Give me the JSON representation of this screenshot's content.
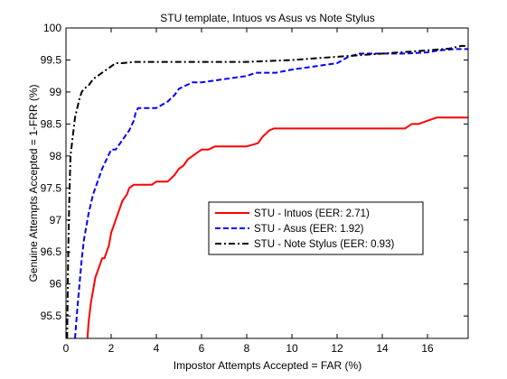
{
  "chart_data": {
    "type": "line",
    "title": "STU template, Intuos vs Asus vs Note Stylus",
    "xlabel": "Impostor Attempts Accepted = FAR (%)",
    "ylabel": "Genuine Attempts Accepted = 1-FRR (%)",
    "xlim": [
      0,
      17.8
    ],
    "ylim": [
      95.15,
      100
    ],
    "xticks": [
      0,
      2,
      4,
      6,
      8,
      10,
      12,
      14,
      16
    ],
    "yticks": [
      95.5,
      96,
      96.5,
      97,
      97.5,
      98,
      98.5,
      99,
      99.5,
      100
    ],
    "xtick_labels": [
      "0",
      "2",
      "4",
      "6",
      "8",
      "10",
      "12",
      "14",
      "16"
    ],
    "ytick_labels": [
      "95.5",
      "96",
      "96.5",
      "97",
      "97.5",
      "98",
      "98.5",
      "99",
      "99.5",
      "100"
    ],
    "grid": false,
    "legend_position": "center-right",
    "series": [
      {
        "name": "STU - Intuos (EER: 2.71)",
        "color": "#ff0000",
        "dash": "solid",
        "x": [
          0.95,
          1.0,
          1.1,
          1.2,
          1.3,
          1.4,
          1.5,
          1.6,
          1.7,
          1.8,
          1.9,
          2.0,
          2.1,
          2.3,
          2.5,
          2.7,
          2.8,
          3.0,
          3.2,
          3.4,
          3.6,
          3.8,
          4.0,
          4.2,
          4.5,
          4.8,
          5.0,
          5.2,
          5.4,
          5.6,
          5.8,
          6.0,
          6.3,
          6.6,
          7.0,
          7.5,
          8.0,
          8.5,
          8.7,
          9.0,
          9.2,
          10.0,
          11.0,
          12.0,
          13.0,
          14.0,
          15.0,
          15.3,
          15.6,
          16.0,
          16.4,
          17.0,
          17.8
        ],
        "values": [
          95.15,
          95.4,
          95.7,
          95.9,
          96.1,
          96.2,
          96.3,
          96.4,
          96.4,
          96.5,
          96.6,
          96.8,
          96.9,
          97.1,
          97.3,
          97.4,
          97.5,
          97.55,
          97.55,
          97.55,
          97.55,
          97.55,
          97.6,
          97.6,
          97.6,
          97.7,
          97.8,
          97.85,
          97.95,
          98.0,
          98.05,
          98.1,
          98.1,
          98.15,
          98.15,
          98.15,
          98.15,
          98.2,
          98.3,
          98.4,
          98.43,
          98.43,
          98.43,
          98.43,
          98.43,
          98.43,
          98.43,
          98.5,
          98.5,
          98.55,
          98.6,
          98.6,
          98.6
        ]
      },
      {
        "name": "STU - Asus (EER: 1.92)",
        "color": "#0000ff",
        "dash": "dashed",
        "x": [
          0.4,
          0.5,
          0.6,
          0.7,
          0.8,
          0.9,
          1.0,
          1.2,
          1.4,
          1.6,
          1.8,
          2.0,
          2.2,
          2.5,
          2.8,
          3.0,
          3.1,
          3.2,
          3.4,
          3.6,
          4.0,
          4.5,
          4.8,
          5.0,
          5.3,
          5.6,
          6.0,
          7.0,
          8.0,
          8.4,
          8.8,
          9.3,
          10.0,
          11.0,
          12.0,
          12.5,
          13.0,
          14.0,
          15.0,
          16.0,
          16.5,
          17.2,
          17.8
        ],
        "values": [
          95.15,
          95.6,
          96.0,
          96.4,
          96.7,
          96.9,
          97.1,
          97.4,
          97.6,
          97.8,
          97.95,
          98.1,
          98.1,
          98.25,
          98.4,
          98.55,
          98.7,
          98.75,
          98.75,
          98.75,
          98.75,
          98.85,
          98.95,
          99.05,
          99.1,
          99.15,
          99.15,
          99.2,
          99.25,
          99.3,
          99.3,
          99.3,
          99.35,
          99.4,
          99.45,
          99.55,
          99.6,
          99.6,
          99.6,
          99.62,
          99.65,
          99.67,
          99.67
        ]
      },
      {
        "name": "STU - Note Stylus (EER: 0.93)",
        "color": "#000000",
        "dash": "dashdot",
        "x": [
          0.05,
          0.1,
          0.15,
          0.2,
          0.3,
          0.4,
          0.5,
          0.6,
          0.7,
          0.8,
          1.0,
          1.2,
          1.4,
          1.6,
          1.8,
          2.0,
          2.2,
          2.5,
          3.0,
          4.0,
          6.0,
          8.0,
          10.0,
          12.0,
          14.0,
          16.0,
          17.0,
          17.5,
          17.8
        ],
        "values": [
          95.15,
          96.5,
          97.4,
          98.0,
          98.3,
          98.6,
          98.75,
          98.9,
          99.0,
          99.05,
          99.1,
          99.2,
          99.25,
          99.3,
          99.35,
          99.4,
          99.45,
          99.45,
          99.47,
          99.47,
          99.47,
          99.47,
          99.5,
          99.55,
          99.6,
          99.65,
          99.68,
          99.72,
          99.72
        ]
      }
    ]
  }
}
